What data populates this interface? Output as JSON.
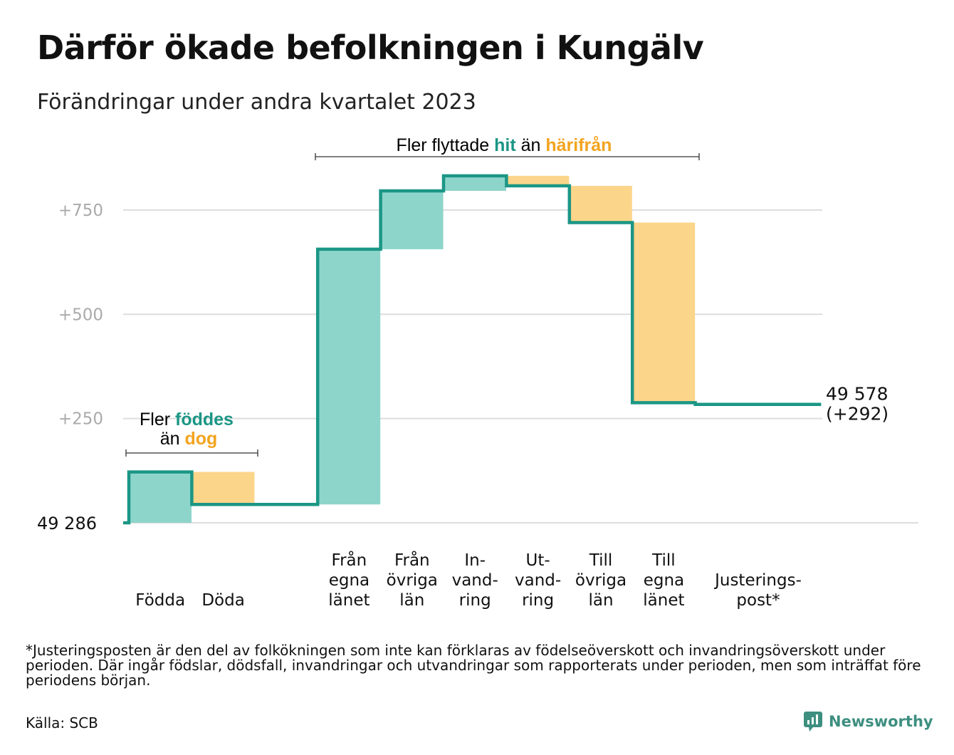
{
  "title": "Därför ökade befolkningen i Kungälv",
  "subtitle": "Förändringar under andra kvartalet 2023",
  "footnote": "*Justeringsposten är den del av folkökningen som inte kan förklaras av födelseöverskott och invandringsöverskott under perioden. Där ingår födslar, dödsfall, invandringar och utvandringar som rapporterats under perioden, men som inträffat före periodens början.",
  "source": "Källa: SCB",
  "brand": "Newsworthy",
  "colors": {
    "increase": "#8dd5cb",
    "decrease": "#fbd58a",
    "line": "#1b9685",
    "accent_teal": "#1b9685",
    "accent_orange": "#f2a41f",
    "grid": "#dddddd",
    "tick": "#aaaaaa"
  },
  "annotations": {
    "natural": {
      "line1_prefix": "Fler ",
      "line1_highlight": "föddes",
      "line2_prefix": "än ",
      "line2_highlight": "dog"
    },
    "migration": {
      "prefix": "Fler flyttade ",
      "highlight1": "hit",
      "middle": " än ",
      "highlight2": "härifrån"
    }
  },
  "chart_data": {
    "type": "waterfall",
    "title": "Därför ökade befolkningen i Kungälv",
    "subtitle": "Förändringar under andra kvartalet 2023",
    "start_label": "49  286",
    "start_value": 49286,
    "y_ticks": [
      250,
      500,
      750
    ],
    "y_tick_labels": [
      "+250",
      "+500",
      "+750"
    ],
    "ylim": [
      0,
      860
    ],
    "grid": true,
    "steps": [
      {
        "category": "Födda",
        "label_lines": [
          "Födda"
        ],
        "value": 122
      },
      {
        "category": "Döda",
        "label_lines": [
          "Döda"
        ],
        "value": -78
      },
      {
        "category": "",
        "label_lines": [],
        "value": 0,
        "spacer": true
      },
      {
        "category": "Från egna länet",
        "label_lines": [
          "Från",
          "egna",
          "länet"
        ],
        "value": 612
      },
      {
        "category": "Från övriga län",
        "label_lines": [
          "Från",
          "övriga",
          "län"
        ],
        "value": 140
      },
      {
        "category": "Invandring",
        "label_lines": [
          "In-",
          "vand-",
          "ring"
        ],
        "value": 36
      },
      {
        "category": "Utvandring",
        "label_lines": [
          "Ut-",
          "vand-",
          "ring"
        ],
        "value": -24
      },
      {
        "category": "Till övriga län",
        "label_lines": [
          "Till",
          "övriga",
          "län"
        ],
        "value": -88
      },
      {
        "category": "Till egna länet",
        "label_lines": [
          "Till",
          "egna",
          "länet"
        ],
        "value": -432
      },
      {
        "category": "Justeringspost*",
        "label_lines": [
          "Justerings-",
          "post*"
        ],
        "value": -4,
        "wide": true
      }
    ],
    "end_label_lines": [
      "49 578",
      "(+292)"
    ],
    "end_value": 49578,
    "total_change": 292
  }
}
